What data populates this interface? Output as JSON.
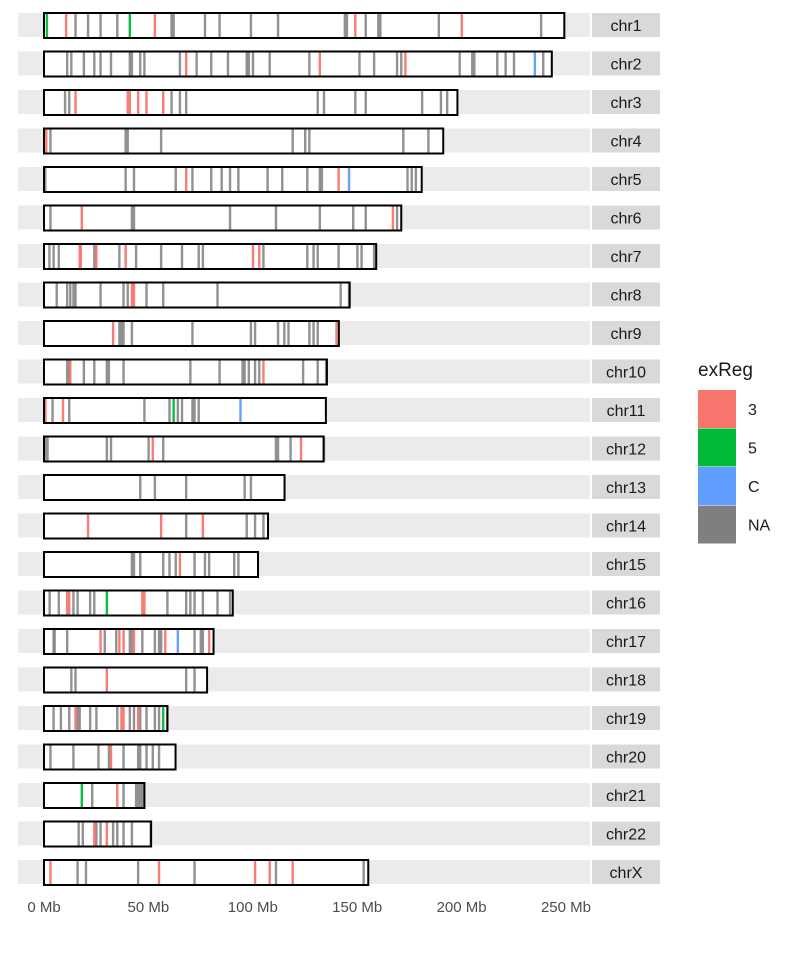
{
  "chart_data": {
    "type": "karyogram",
    "xlabel": "",
    "ylabel": "",
    "xlim": [
      0,
      250
    ],
    "x_ticks": [
      {
        "value": 0,
        "label": "0 Mb"
      },
      {
        "value": 50,
        "label": "50 Mb"
      },
      {
        "value": 100,
        "label": "100 Mb"
      },
      {
        "value": 150,
        "label": "150 Mb"
      },
      {
        "value": 200,
        "label": "200 Mb"
      },
      {
        "value": 250,
        "label": "250 Mb"
      }
    ],
    "legend": {
      "title": "exReg",
      "placement": "right",
      "entries": [
        {
          "key": "3",
          "label": "3",
          "color": "#F8766D"
        },
        {
          "key": "5",
          "label": "5",
          "color": "#00BA38"
        },
        {
          "key": "C",
          "label": "C",
          "color": "#619CFF"
        },
        {
          "key": "NA",
          "label": "NA",
          "color": "#7F7F7F"
        }
      ]
    },
    "chromosomes": [
      {
        "name": "chr1",
        "length": 249.2,
        "marks": {
          "3": [
            10.5,
            53,
            149,
            200
          ],
          "5": [
            1.3,
            41
          ],
          "C": [],
          "NA": [
            15,
            21,
            27,
            35,
            61,
            62,
            77,
            84,
            99,
            112,
            144,
            145,
            154,
            160,
            161,
            189,
            238
          ]
        }
      },
      {
        "name": "chr2",
        "length": 243.2,
        "marks": {
          "3": [
            68,
            132,
            173
          ],
          "5": [],
          "C": [
            235
          ],
          "NA": [
            11,
            13,
            19,
            24,
            27,
            32,
            41,
            42,
            46,
            48,
            65,
            73,
            80,
            88,
            97,
            98,
            100,
            108,
            127,
            151,
            158,
            169,
            171,
            199,
            205,
            206,
            217,
            221,
            225,
            239
          ]
        }
      },
      {
        "name": "chr3",
        "length": 198.0,
        "marks": {
          "3": [
            15,
            40,
            41,
            45,
            49,
            57
          ],
          "5": [],
          "C": [],
          "NA": [
            10,
            12,
            61,
            65,
            68,
            131,
            134,
            149,
            154,
            181,
            190,
            193
          ]
        }
      },
      {
        "name": "chr4",
        "length": 191.2,
        "marks": {
          "3": [
            1
          ],
          "5": [],
          "C": [],
          "NA": [
            3,
            39,
            40,
            56,
            119,
            125,
            127,
            172,
            184
          ]
        }
      },
      {
        "name": "chr5",
        "length": 180.9,
        "marks": {
          "3": [
            68,
            141
          ],
          "5": [],
          "C": [
            146
          ],
          "NA": [
            0.5,
            39,
            43,
            63,
            71,
            80,
            85,
            89,
            93,
            107,
            114,
            126,
            132,
            133,
            174,
            176,
            178
          ]
        }
      },
      {
        "name": "chr6",
        "length": 171.1,
        "marks": {
          "3": [
            18,
            167
          ],
          "5": [],
          "C": [],
          "NA": [
            3,
            42,
            43,
            89,
            111,
            132,
            148,
            154,
            169
          ]
        }
      },
      {
        "name": "chr7",
        "length": 159.1,
        "marks": {
          "3": [
            17,
            17.5,
            25,
            39,
            100,
            103
          ],
          "5": [],
          "C": [],
          "NA": [
            2.5,
            4.5,
            7,
            24,
            36,
            44,
            56,
            66,
            74,
            76,
            105,
            126,
            129,
            131,
            141,
            150,
            152,
            158
          ]
        }
      },
      {
        "name": "chr8",
        "length": 146.4,
        "marks": {
          "3": [
            42,
            43
          ],
          "5": [],
          "C": [],
          "NA": [
            6,
            11,
            12.5,
            14,
            15,
            27,
            38,
            40,
            49,
            57,
            83,
            142,
            146
          ]
        }
      },
      {
        "name": "chr9",
        "length": 141.2,
        "marks": {
          "3": [
            33,
            140
          ],
          "5": [],
          "C": [],
          "NA": [
            36,
            37,
            38,
            42,
            71,
            99,
            101,
            112,
            115,
            117,
            127,
            129,
            131
          ]
        }
      },
      {
        "name": "chr10",
        "length": 135.5,
        "marks": {
          "3": [
            12.5,
            105
          ],
          "5": [],
          "C": [],
          "NA": [
            11,
            12,
            19,
            24,
            30,
            31,
            38,
            70,
            84,
            95,
            96,
            98,
            101,
            103,
            124,
            131,
            135
          ]
        }
      },
      {
        "name": "chr11",
        "length": 135.0,
        "marks": {
          "3": [
            0.6,
            9
          ],
          "5": [
            62
          ],
          "C": [
            94
          ],
          "NA": [
            4,
            12,
            48,
            60,
            64,
            66,
            71,
            72,
            74
          ]
        }
      },
      {
        "name": "chr12",
        "length": 133.9,
        "marks": {
          "3": [
            52,
            123
          ],
          "5": [],
          "C": [],
          "NA": [
            0.5,
            1.6,
            30,
            32,
            50,
            57,
            111,
            112,
            118,
            134
          ]
        }
      },
      {
        "name": "chr13",
        "length": 115.2,
        "marks": {
          "3": [],
          "5": [],
          "C": [],
          "NA": [
            46,
            53,
            68,
            96,
            99
          ]
        }
      },
      {
        "name": "chr14",
        "length": 107.3,
        "marks": {
          "3": [
            21,
            56,
            76
          ],
          "5": [],
          "C": [],
          "NA": [
            68,
            97,
            101,
            105
          ]
        }
      },
      {
        "name": "chr15",
        "length": 102.5,
        "marks": {
          "3": [
            65
          ],
          "5": [],
          "C": [],
          "NA": [
            42,
            43,
            46,
            57,
            60,
            63,
            72,
            77,
            79,
            91,
            93
          ]
        }
      },
      {
        "name": "chr16",
        "length": 90.4,
        "marks": {
          "3": [
            11,
            12,
            47,
            48
          ],
          "5": [
            30
          ],
          "C": [],
          "NA": [
            2.6,
            7,
            14,
            16,
            22,
            24,
            59,
            68,
            70,
            72,
            76,
            83,
            89
          ]
        }
      },
      {
        "name": "chr17",
        "length": 81.2,
        "marks": {
          "3": [
            27,
            36,
            38,
            43,
            58,
            79
          ],
          "5": [],
          "C": [
            64
          ],
          "NA": [
            4.5,
            5,
            11,
            29,
            34.5,
            41,
            42,
            47,
            53,
            55,
            56,
            72,
            75,
            76
          ]
        }
      },
      {
        "name": "chr18",
        "length": 78.1,
        "marks": {
          "3": [
            30
          ],
          "5": [],
          "C": [],
          "NA": [
            13,
            15,
            68,
            72
          ]
        }
      },
      {
        "name": "chr19",
        "length": 59.1,
        "marks": {
          "3": [
            15,
            37,
            38,
            45
          ],
          "5": [
            57
          ],
          "C": [],
          "NA": [
            4.5,
            8,
            12,
            16,
            17,
            22,
            25,
            35,
            41,
            43,
            46,
            49,
            53,
            55,
            59
          ]
        }
      },
      {
        "name": "chr20",
        "length": 63.0,
        "marks": {
          "3": [
            32
          ],
          "5": [],
          "C": [],
          "NA": [
            3,
            14,
            26,
            31,
            38,
            45,
            46,
            49,
            52,
            55
          ]
        }
      },
      {
        "name": "chr21",
        "length": 48.1,
        "marks": {
          "3": [
            35
          ],
          "5": [
            18
          ],
          "C": [],
          "NA": [
            23,
            38,
            44,
            45,
            46,
            47
          ]
        }
      },
      {
        "name": "chr22",
        "length": 51.3,
        "marks": {
          "3": [
            24,
            30
          ],
          "5": [],
          "C": [],
          "NA": [
            16.5,
            18.5,
            25,
            27,
            33,
            35,
            38,
            42,
            51
          ]
        }
      },
      {
        "name": "chrX",
        "length": 155.3,
        "marks": {
          "3": [
            3,
            55,
            101,
            108,
            119
          ],
          "5": [],
          "C": [],
          "NA": [
            16,
            20,
            45,
            72,
            111,
            153
          ]
        }
      }
    ]
  }
}
